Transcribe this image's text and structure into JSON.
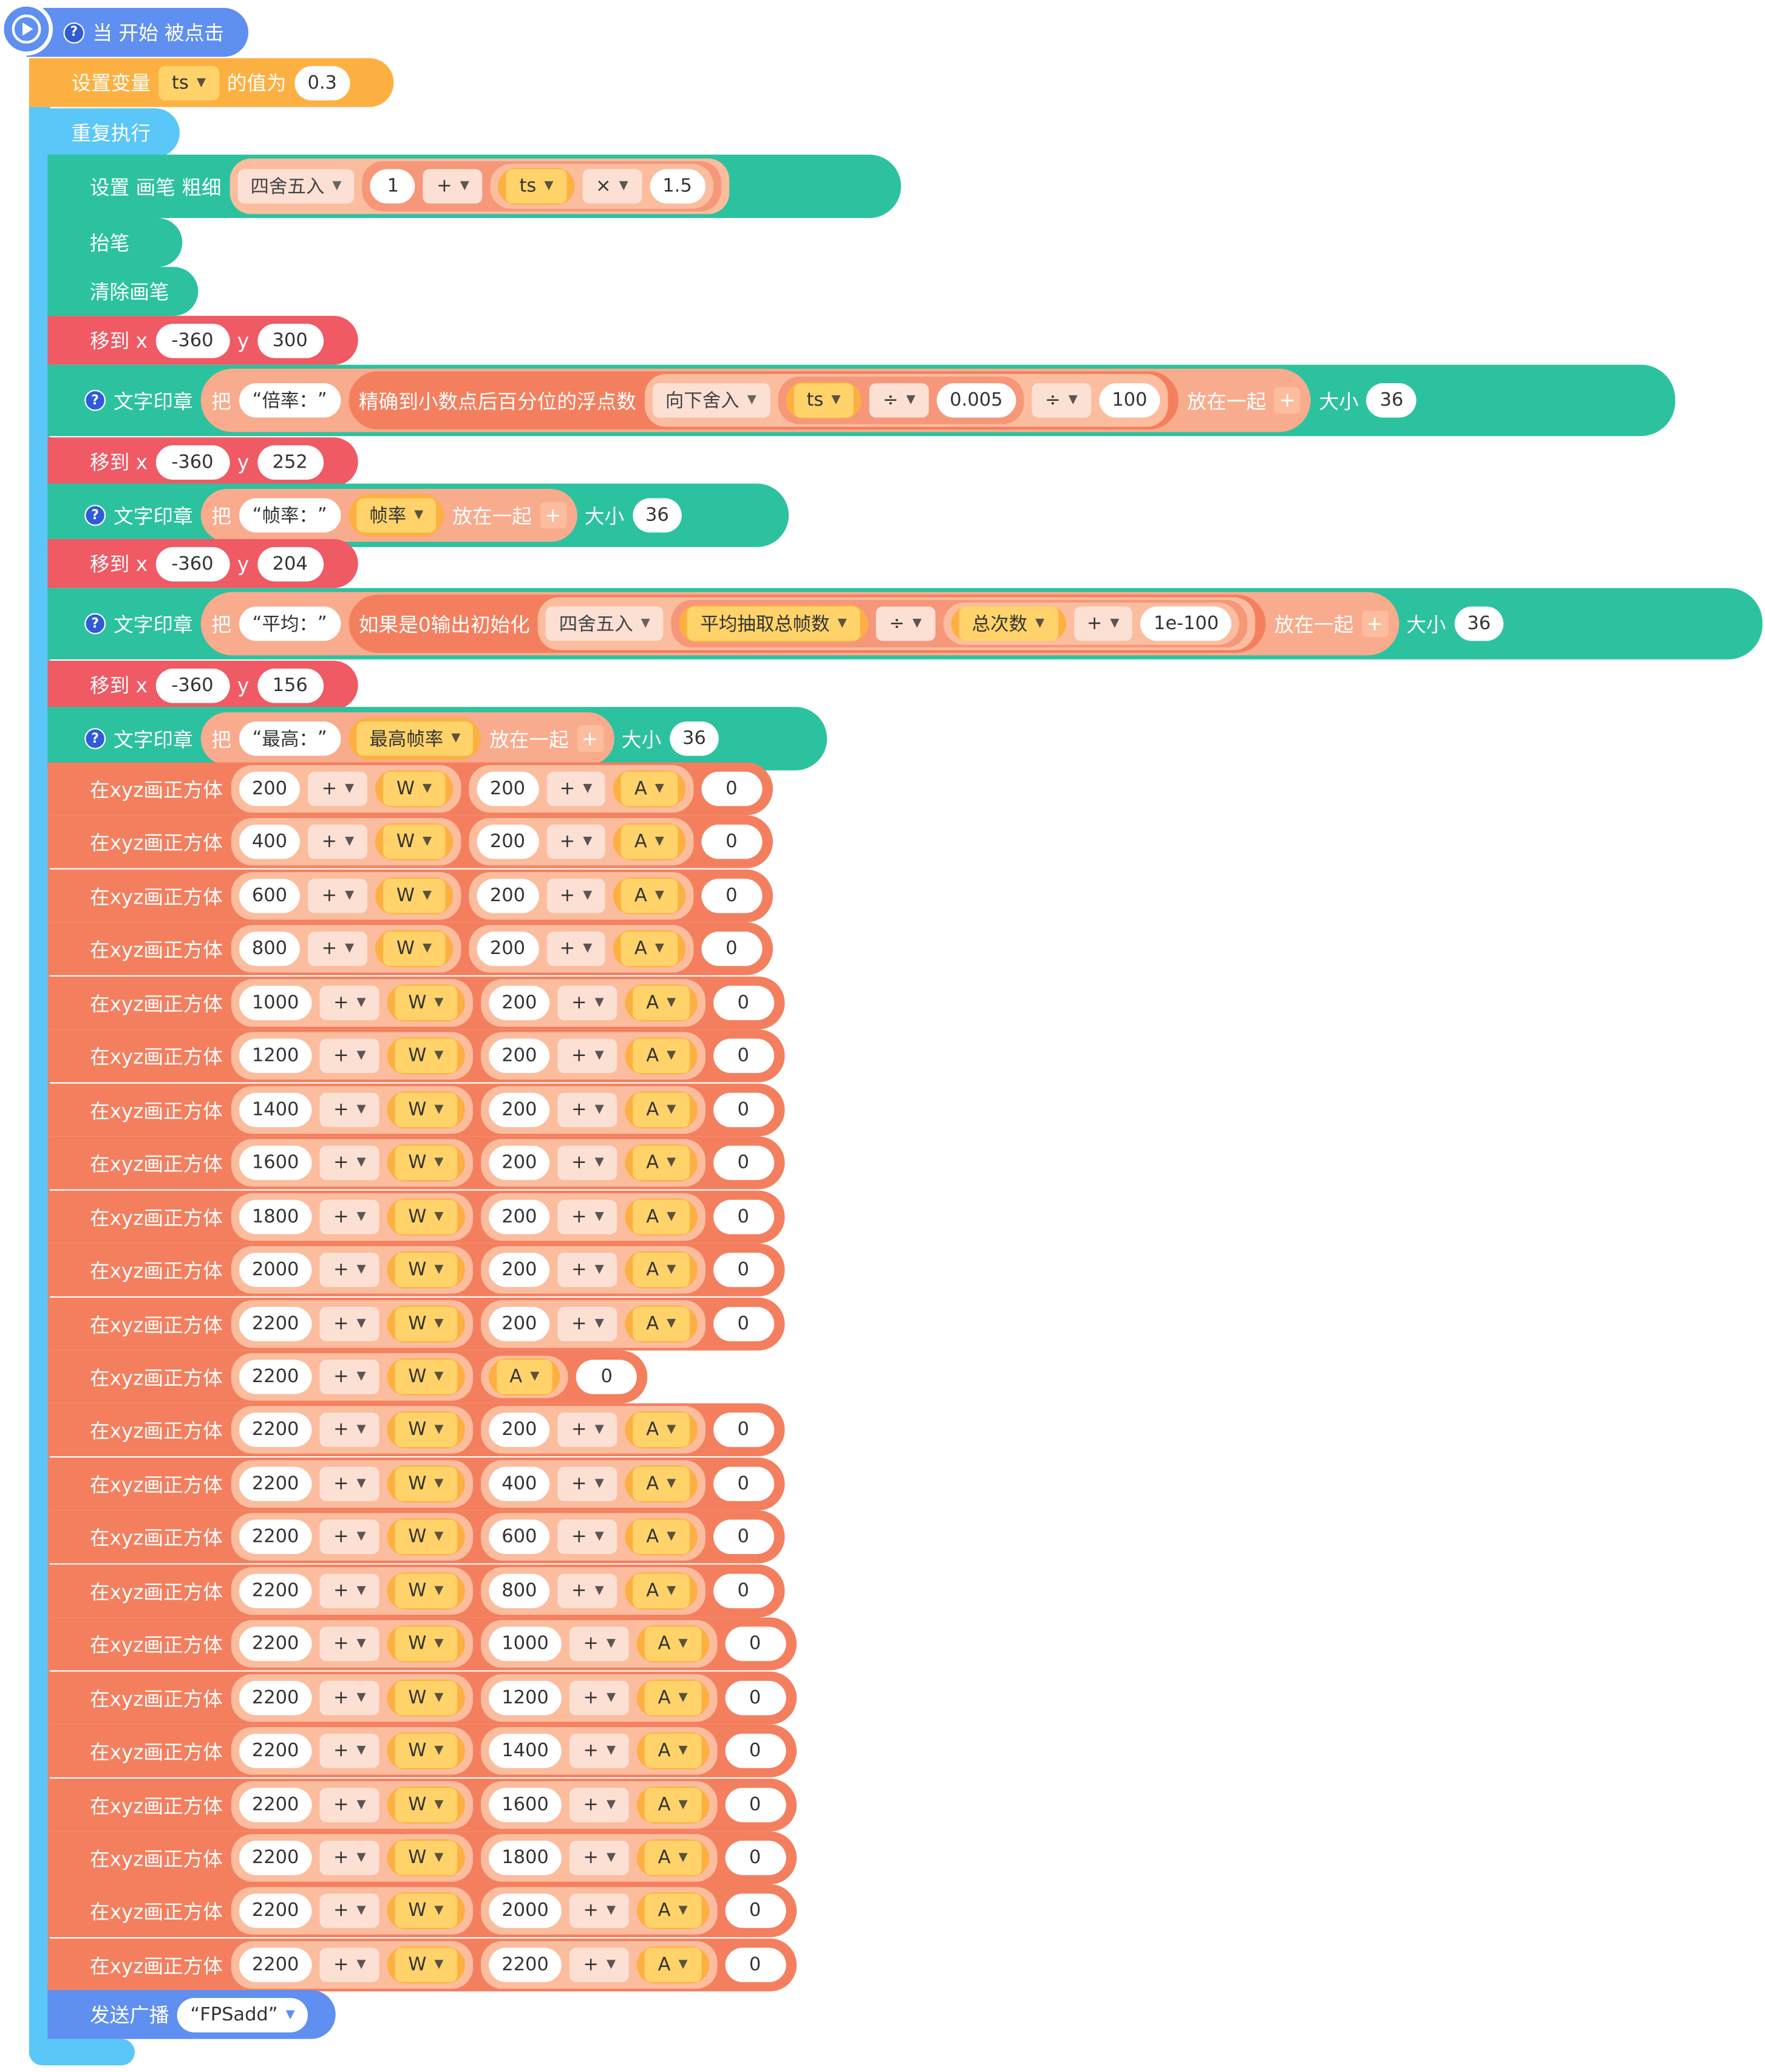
{
  "hat": {
    "label": "当 开始 被点击",
    "help": "?"
  },
  "set_var": {
    "label_a": "设置变量",
    "var": "ts",
    "label_b": "的值为",
    "value": "0.3"
  },
  "repeat": {
    "label": "重复执行"
  },
  "pen_size": {
    "label": "设置 画笔 粗细",
    "round_fn": "四舍五入",
    "a": "1",
    "op1": "+",
    "var": "ts",
    "op2": "×",
    "b": "1.5"
  },
  "pen_up": {
    "label": "抬笔"
  },
  "clear": {
    "label": "清除画笔"
  },
  "moves": [
    {
      "label": "移到 x",
      "x": "-360",
      "ylabel": "y",
      "y": "300"
    },
    {
      "label": "移到 x",
      "x": "-360",
      "ylabel": "y",
      "y": "252"
    },
    {
      "label": "移到 x",
      "x": "-360",
      "ylabel": "y",
      "y": "204"
    },
    {
      "label": "移到 x",
      "x": "-360",
      "ylabel": "y",
      "y": "156"
    }
  ],
  "stamp1": {
    "label": "文字印章",
    "ba": "把",
    "text": "倍率：",
    "precise": "精确到小数点后百分位的浮点数",
    "floor": "向下舍入",
    "var": "ts",
    "op1": "÷",
    "num1": "0.005",
    "op2": "÷",
    "num2": "100",
    "join": "放在一起",
    "size_label": "大小",
    "size": "36"
  },
  "stamp2": {
    "label": "文字印章",
    "ba": "把",
    "text": "帧率：",
    "var": "帧率",
    "join": "放在一起",
    "size_label": "大小",
    "size": "36"
  },
  "stamp3": {
    "label": "文字印章",
    "ba": "把",
    "text": "平均：",
    "zero": "如果是0输出初始化",
    "round": "四舍五入",
    "var1": "平均抽取总帧数",
    "op1": "÷",
    "var2": "总次数",
    "op2": "+",
    "num": "1e-100",
    "join": "放在一起",
    "size_label": "大小",
    "size": "36"
  },
  "stamp4": {
    "label": "文字印章",
    "ba": "把",
    "text": "最高：",
    "var": "最高帧率",
    "join": "放在一起",
    "size_label": "大小",
    "size": "36"
  },
  "cubes": [
    {
      "label": "在xyz画正方体",
      "x": "200",
      "op": "+",
      "w": "W",
      "y": "200",
      "a": "A",
      "z": "0"
    },
    {
      "label": "在xyz画正方体",
      "x": "400",
      "op": "+",
      "w": "W",
      "y": "200",
      "a": "A",
      "z": "0"
    },
    {
      "label": "在xyz画正方体",
      "x": "600",
      "op": "+",
      "w": "W",
      "y": "200",
      "a": "A",
      "z": "0"
    },
    {
      "label": "在xyz画正方体",
      "x": "800",
      "op": "+",
      "w": "W",
      "y": "200",
      "a": "A",
      "z": "0"
    },
    {
      "label": "在xyz画正方体",
      "x": "1000",
      "op": "+",
      "w": "W",
      "y": "200",
      "a": "A",
      "z": "0"
    },
    {
      "label": "在xyz画正方体",
      "x": "1200",
      "op": "+",
      "w": "W",
      "y": "200",
      "a": "A",
      "z": "0"
    },
    {
      "label": "在xyz画正方体",
      "x": "1400",
      "op": "+",
      "w": "W",
      "y": "200",
      "a": "A",
      "z": "0"
    },
    {
      "label": "在xyz画正方体",
      "x": "1600",
      "op": "+",
      "w": "W",
      "y": "200",
      "a": "A",
      "z": "0"
    },
    {
      "label": "在xyz画正方体",
      "x": "1800",
      "op": "+",
      "w": "W",
      "y": "200",
      "a": "A",
      "z": "0"
    },
    {
      "label": "在xyz画正方体",
      "x": "2000",
      "op": "+",
      "w": "W",
      "y": "200",
      "a": "A",
      "z": "0"
    },
    {
      "label": "在xyz画正方体",
      "x": "2200",
      "op": "+",
      "w": "W",
      "y": "200",
      "a": "A",
      "z": "0"
    },
    {
      "label": "在xyz画正方体",
      "x": "2200",
      "op": "+",
      "w": "W",
      "y": "",
      "a": "A",
      "z": "0"
    },
    {
      "label": "在xyz画正方体",
      "x": "2200",
      "op": "+",
      "w": "W",
      "y": "200",
      "a": "A",
      "z": "0"
    },
    {
      "label": "在xyz画正方体",
      "x": "2200",
      "op": "+",
      "w": "W",
      "y": "400",
      "a": "A",
      "z": "0"
    },
    {
      "label": "在xyz画正方体",
      "x": "2200",
      "op": "+",
      "w": "W",
      "y": "600",
      "a": "A",
      "z": "0"
    },
    {
      "label": "在xyz画正方体",
      "x": "2200",
      "op": "+",
      "w": "W",
      "y": "800",
      "a": "A",
      "z": "0"
    },
    {
      "label": "在xyz画正方体",
      "x": "2200",
      "op": "+",
      "w": "W",
      "y": "1000",
      "a": "A",
      "z": "0"
    },
    {
      "label": "在xyz画正方体",
      "x": "2200",
      "op": "+",
      "w": "W",
      "y": "1200",
      "a": "A",
      "z": "0"
    },
    {
      "label": "在xyz画正方体",
      "x": "2200",
      "op": "+",
      "w": "W",
      "y": "1400",
      "a": "A",
      "z": "0"
    },
    {
      "label": "在xyz画正方体",
      "x": "2200",
      "op": "+",
      "w": "W",
      "y": "1600",
      "a": "A",
      "z": "0"
    },
    {
      "label": "在xyz画正方体",
      "x": "2200",
      "op": "+",
      "w": "W",
      "y": "1800",
      "a": "A",
      "z": "0"
    },
    {
      "label": "在xyz画正方体",
      "x": "2200",
      "op": "+",
      "w": "W",
      "y": "2000",
      "a": "A",
      "z": "0"
    },
    {
      "label": "在xyz画正方体",
      "x": "2200",
      "op": "+",
      "w": "W",
      "y": "2200",
      "a": "A",
      "z": "0"
    }
  ],
  "broadcast": {
    "label": "发送广播",
    "message": "FPSadd"
  },
  "colors": {
    "events": "#5f8ff0",
    "variables": "#fdb042",
    "control": "#5bc6f8",
    "pen": "#2cc29f",
    "motion": "#ef5a64",
    "custom": "#f47f5f",
    "operators": "#f9ab8d"
  }
}
